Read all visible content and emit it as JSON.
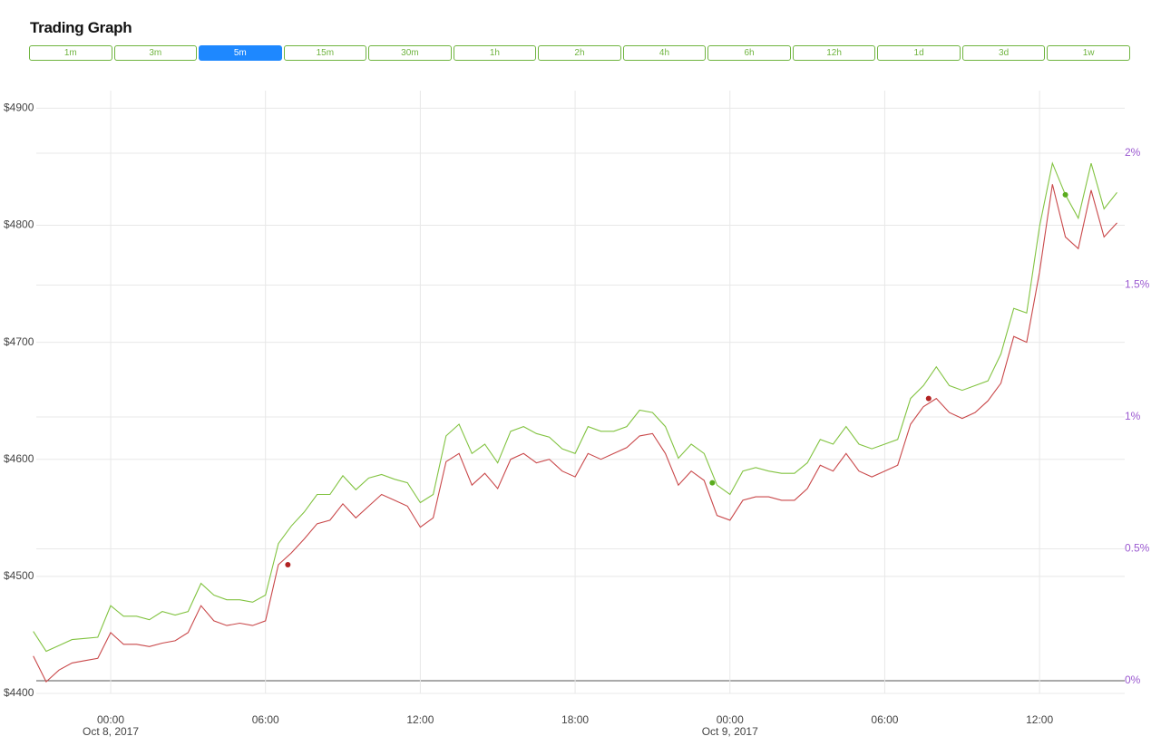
{
  "title": "Trading Graph",
  "intervals": {
    "labels": [
      "1m",
      "3m",
      "5m",
      "15m",
      "30m",
      "1h",
      "2h",
      "4h",
      "6h",
      "12h",
      "1d",
      "3d",
      "1w"
    ],
    "active": 2
  },
  "chart_data": {
    "type": "line",
    "x": [
      "2017-10-07 21:00",
      "2017-10-07 21:30",
      "2017-10-07 22:00",
      "2017-10-07 22:30",
      "2017-10-07 23:00",
      "2017-10-07 23:30",
      "2017-10-08 00:00",
      "2017-10-08 00:30",
      "2017-10-08 01:00",
      "2017-10-08 01:30",
      "2017-10-08 02:00",
      "2017-10-08 02:30",
      "2017-10-08 03:00",
      "2017-10-08 03:30",
      "2017-10-08 04:00",
      "2017-10-08 04:30",
      "2017-10-08 05:00",
      "2017-10-08 05:30",
      "2017-10-08 06:00",
      "2017-10-08 06:30",
      "2017-10-08 07:00",
      "2017-10-08 07:30",
      "2017-10-08 08:00",
      "2017-10-08 08:30",
      "2017-10-08 09:00",
      "2017-10-08 09:30",
      "2017-10-08 10:00",
      "2017-10-08 10:30",
      "2017-10-08 11:00",
      "2017-10-08 11:30",
      "2017-10-08 12:00",
      "2017-10-08 12:30",
      "2017-10-08 13:00",
      "2017-10-08 13:30",
      "2017-10-08 14:00",
      "2017-10-08 14:30",
      "2017-10-08 15:00",
      "2017-10-08 15:30",
      "2017-10-08 16:00",
      "2017-10-08 16:30",
      "2017-10-08 17:00",
      "2017-10-08 17:30",
      "2017-10-08 18:00",
      "2017-10-08 18:30",
      "2017-10-08 19:00",
      "2017-10-08 19:30",
      "2017-10-08 20:00",
      "2017-10-08 20:30",
      "2017-10-08 21:00",
      "2017-10-08 21:30",
      "2017-10-08 22:00",
      "2017-10-08 22:30",
      "2017-10-08 23:00",
      "2017-10-08 23:30",
      "2017-10-09 00:00",
      "2017-10-09 00:30",
      "2017-10-09 01:00",
      "2017-10-09 01:30",
      "2017-10-09 02:00",
      "2017-10-09 02:30",
      "2017-10-09 03:00",
      "2017-10-09 03:30",
      "2017-10-09 04:00",
      "2017-10-09 04:30",
      "2017-10-09 05:00",
      "2017-10-09 05:30",
      "2017-10-09 06:00",
      "2017-10-09 06:30",
      "2017-10-09 07:00",
      "2017-10-09 07:30",
      "2017-10-09 08:00",
      "2017-10-09 08:30",
      "2017-10-09 09:00",
      "2017-10-09 09:30",
      "2017-10-09 10:00",
      "2017-10-09 10:30",
      "2017-10-09 11:00",
      "2017-10-09 11:30",
      "2017-10-09 12:00",
      "2017-10-09 12:30",
      "2017-10-09 13:00",
      "2017-10-09 13:30",
      "2017-10-09 14:00",
      "2017-10-09 14:30",
      "2017-10-09 15:00"
    ],
    "series": [
      {
        "color": "#82c341",
        "values": [
          4453,
          4436,
          4441,
          4446,
          4447,
          4448,
          4475,
          4466,
          4466,
          4463,
          4470,
          4467,
          4470,
          4494,
          4484,
          4480,
          4480,
          4478,
          4484,
          4528,
          4543,
          4555,
          4570,
          4570,
          4586,
          4574,
          4584,
          4587,
          4583,
          4580,
          4563,
          4570,
          4620,
          4630,
          4605,
          4613,
          4597,
          4624,
          4628,
          4622,
          4619,
          4609,
          4605,
          4628,
          4624,
          4624,
          4628,
          4642,
          4640,
          4628,
          4601,
          4613,
          4605,
          4578,
          4570,
          4590,
          4593,
          4590,
          4588,
          4588,
          4597,
          4617,
          4613,
          4628,
          4613,
          4609,
          4613,
          4617,
          4652,
          4663,
          4679,
          4663,
          4659,
          4663,
          4667,
          4690,
          4729,
          4725,
          4799,
          4853,
          4826,
          4806,
          4853,
          4814,
          4828
        ]
      },
      {
        "color": "#c9484a",
        "values": [
          4432,
          4410,
          4420,
          4426,
          4428,
          4430,
          4452,
          4442,
          4442,
          4440,
          4443,
          4445,
          4452,
          4475,
          4462,
          4458,
          4460,
          4458,
          4462,
          4510,
          4520,
          4532,
          4545,
          4548,
          4562,
          4550,
          4560,
          4570,
          4565,
          4560,
          4542,
          4550,
          4598,
          4605,
          4578,
          4588,
          4575,
          4600,
          4605,
          4597,
          4600,
          4590,
          4585,
          4605,
          4600,
          4605,
          4610,
          4620,
          4622,
          4605,
          4578,
          4590,
          4582,
          4552,
          4548,
          4565,
          4568,
          4568,
          4565,
          4565,
          4575,
          4595,
          4590,
          4605,
          4590,
          4585,
          4590,
          4595,
          4630,
          4645,
          4652,
          4640,
          4635,
          4640,
          4650,
          4665,
          4705,
          4700,
          4760,
          4835,
          4790,
          4780,
          4830,
          4790,
          4802
        ]
      }
    ],
    "markers": [
      {
        "x": "2017-10-08 06:52",
        "y": 4510,
        "color": "#b22222"
      },
      {
        "x": "2017-10-08 23:19",
        "y": 4580,
        "color": "#5aac1e"
      },
      {
        "x": "2017-10-09 07:42",
        "y": 4652,
        "color": "#b22222"
      },
      {
        "x": "2017-10-09 13:00",
        "y": 4826,
        "color": "#5aac1e"
      }
    ],
    "xlim": [
      "2017-10-07 21:07",
      "2017-10-09 15:18"
    ],
    "xticks": [
      {
        "value": "2017-10-08 00:00",
        "label": "00:00"
      },
      {
        "value": "2017-10-08 06:00",
        "label": "06:00"
      },
      {
        "value": "2017-10-08 12:00",
        "label": "12:00"
      },
      {
        "value": "2017-10-08 18:00",
        "label": "18:00"
      },
      {
        "value": "2017-10-09 00:00",
        "label": "00:00"
      },
      {
        "value": "2017-10-09 06:00",
        "label": "06:00"
      },
      {
        "value": "2017-10-09 12:00",
        "label": "12:00"
      }
    ],
    "x_date_labels": [
      {
        "value": "2017-10-08 00:00",
        "label": "Oct 8, 2017"
      },
      {
        "value": "2017-10-09 00:00",
        "label": "Oct 9, 2017"
      }
    ],
    "ylim": [
      4400,
      4915
    ],
    "yticks": [
      {
        "value": 4400,
        "label": "$4400"
      },
      {
        "value": 4500,
        "label": "$4500"
      },
      {
        "value": 4600,
        "label": "$4600"
      },
      {
        "value": 4700,
        "label": "$4700"
      },
      {
        "value": 4800,
        "label": "$4800"
      },
      {
        "value": 4900,
        "label": "$4900"
      }
    ],
    "y2lim": [
      -0.048,
      2.237
    ],
    "y2ticks": [
      {
        "value": 0,
        "label": "0%"
      },
      {
        "value": 0.5,
        "label": "0.5%"
      },
      {
        "value": 1,
        "label": "1%"
      },
      {
        "value": 1.5,
        "label": "1.5%"
      },
      {
        "value": 2,
        "label": "2%"
      }
    ],
    "grid": true
  }
}
